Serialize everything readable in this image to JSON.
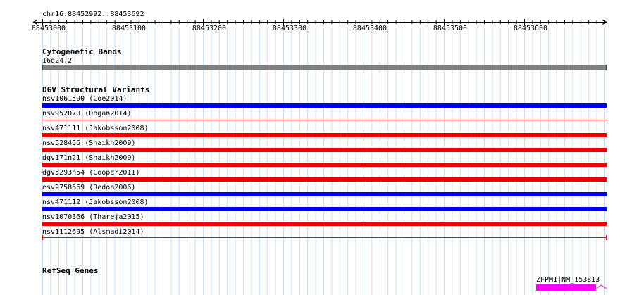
{
  "ruler": {
    "locus": "chr16:88452992..88453692",
    "ticks": [
      "88453000",
      "88453100",
      "88453200",
      "88453300",
      "88453400",
      "88453500",
      "88453600"
    ]
  },
  "tracks": {
    "cytoband": {
      "title": "Cytogenetic Bands",
      "band": "16q24.2",
      "color": "#7f7f7f"
    },
    "dgv": {
      "title": "DGV Structural Variants",
      "items": [
        {
          "label": "nsv1061590 (Coe2014)",
          "color": "#0000ee",
          "style": "thick"
        },
        {
          "label": "nsv952070 (Dogan2014)",
          "color": "#ee0000",
          "style": "thin"
        },
        {
          "label": "nsv471111 (Jakobsson2008)",
          "color": "#ee0000",
          "style": "thick"
        },
        {
          "label": "nsv528456 (Shaikh2009)",
          "color": "#ee0000",
          "style": "thick"
        },
        {
          "label": "dgv171n21 (Shaikh2009)",
          "color": "#ee0000",
          "style": "thick"
        },
        {
          "label": "dgv5293n54 (Cooper2011)",
          "color": "#ee0000",
          "style": "thick"
        },
        {
          "label": "esv2758669 (Redon2006)",
          "color": "#0000ee",
          "style": "thick"
        },
        {
          "label": "nsv471112 (Jakobsson2008)",
          "color": "#0000ee",
          "style": "thick"
        },
        {
          "label": "nsv1070366 (Thareja2015)",
          "color": "#ee0000",
          "style": "thick"
        },
        {
          "label": "nsv1112695 (Alsmadi2014)",
          "color": "#ee0000",
          "style": "bracket"
        }
      ]
    },
    "refseq": {
      "title": "RefSeq Genes",
      "gene_label": "ZFPM1|NM_153813",
      "color": "#ff00ff"
    }
  }
}
